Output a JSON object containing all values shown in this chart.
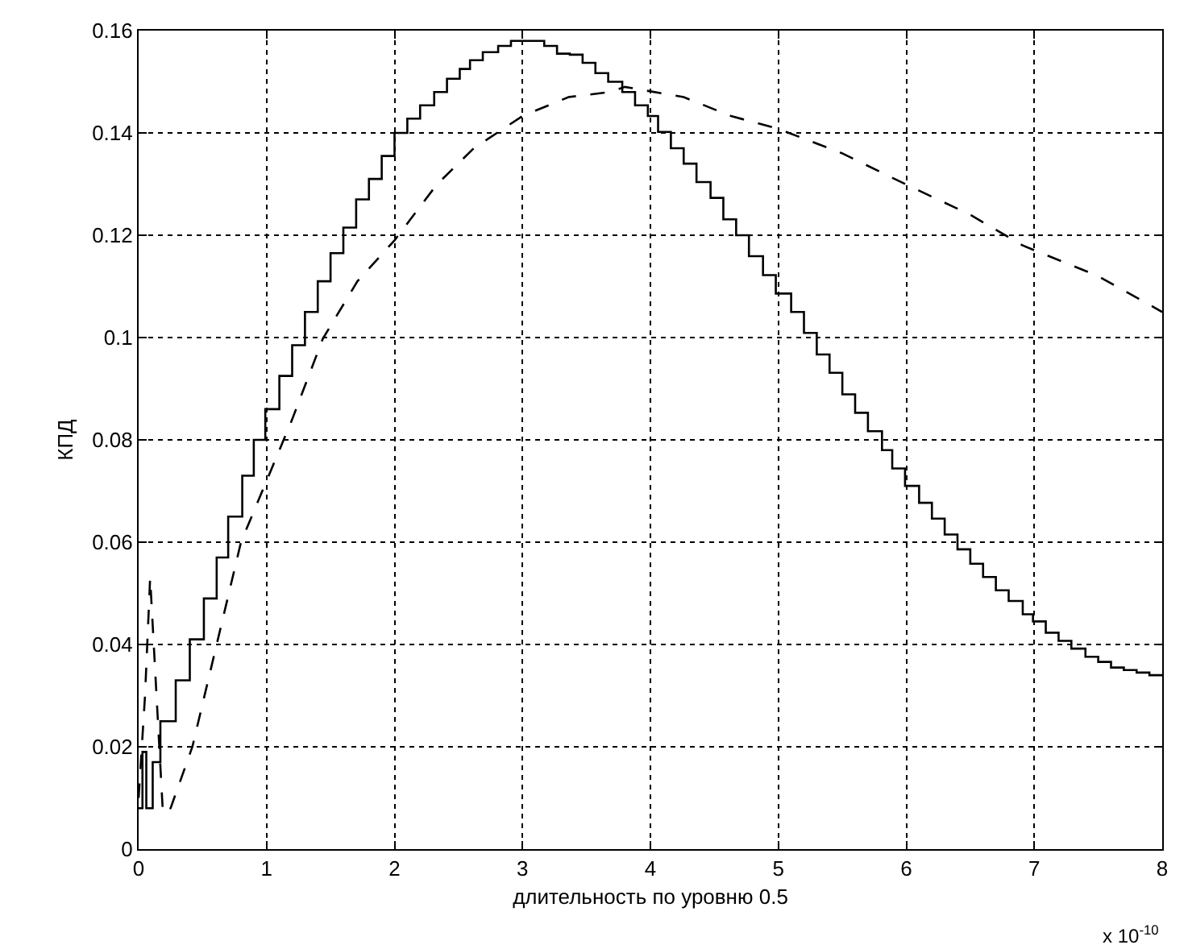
{
  "chart_data": {
    "type": "line",
    "xlabel": "длительность по уровню 0.5",
    "ylabel": "КПД",
    "annotations": [
      "x 10$^{-10}$"
    ],
    "xlim": [
      0,
      8
    ],
    "xticks": [
      0,
      1,
      2,
      3,
      4,
      5,
      6,
      7,
      8
    ],
    "ylim": [
      0,
      0.16
    ],
    "yticks": [
      0,
      0.02,
      0.04,
      0.06,
      0.08,
      0.1,
      0.12,
      0.14,
      0.16
    ],
    "grid": true,
    "series": [
      {
        "type": "step",
        "color": "#000000",
        "line_style": "solid",
        "x": [
          0,
          0.03,
          0.06,
          0.11,
          0.17,
          0.29,
          0.4,
          0.51,
          0.61,
          0.7,
          0.81,
          0.9,
          0.99,
          1.1,
          1.2,
          1.3,
          1.4,
          1.5,
          1.6,
          1.7,
          1.8,
          1.9,
          2.0,
          2.1,
          2.2,
          2.31,
          2.41,
          2.51,
          2.59,
          2.69,
          2.81,
          2.91,
          3.17,
          3.27,
          3.37,
          3.47,
          3.57,
          3.67,
          3.78,
          3.88,
          3.98,
          4.06,
          4.16,
          4.26,
          4.36,
          4.47,
          4.57,
          4.67,
          4.77,
          4.88,
          4.98,
          5.1,
          5.2,
          5.3,
          5.4,
          5.5,
          5.6,
          5.7,
          5.81,
          5.89,
          5.99,
          6.1,
          6.2,
          6.3,
          6.4,
          6.5,
          6.6,
          6.7,
          6.8,
          6.91,
          6.99,
          7.09,
          7.19,
          7.29,
          7.4,
          7.5,
          7.6,
          7.7,
          7.8,
          7.9,
          8.0
        ],
        "values": [
          0.008,
          0.019,
          0.008,
          0.017,
          0.025,
          0.033,
          0.041,
          0.049,
          0.057,
          0.065,
          0.073,
          0.08,
          0.086,
          0.0925,
          0.0985,
          0.105,
          0.111,
          0.1165,
          0.1215,
          0.127,
          0.131,
          0.1355,
          0.14,
          0.1428,
          0.1454,
          0.148,
          0.1506,
          0.1525,
          0.1542,
          0.1558,
          0.157,
          0.158,
          0.157,
          0.1555,
          0.1553,
          0.1537,
          0.1517,
          0.15,
          0.148,
          0.1454,
          0.1433,
          0.1402,
          0.137,
          0.134,
          0.1304,
          0.1273,
          0.1231,
          0.12,
          0.1159,
          0.1122,
          0.1086,
          0.105,
          0.1009,
          0.0967,
          0.0931,
          0.0889,
          0.0853,
          0.0817,
          0.078,
          0.0744,
          0.071,
          0.0677,
          0.0646,
          0.0615,
          0.0586,
          0.0558,
          0.0532,
          0.0506,
          0.0485,
          0.0459,
          0.0445,
          0.0423,
          0.0407,
          0.0392,
          0.0376,
          0.0366,
          0.0355,
          0.035,
          0.0345,
          0.034,
          0.034
        ]
      },
      {
        "color": "#000000",
        "line_style": "dashed",
        "x": [
          0,
          0.05,
          0.09,
          0.14,
          0.19,
          0.25,
          0.42,
          0.61,
          0.8,
          1.0,
          1.2,
          1.44,
          1.71,
          2.0,
          2.33,
          2.62,
          3.0,
          3.36,
          3.68,
          3.8,
          4.26,
          4.63,
          5.0,
          5.5,
          6.0,
          6.5,
          6.91,
          7.5,
          8.0
        ],
        "values": [
          0.01,
          0.03,
          0.053,
          0.03,
          0.007,
          0.008,
          0.02,
          0.04,
          0.06,
          0.072,
          0.084,
          0.0998,
          0.111,
          0.119,
          0.1299,
          0.137,
          0.1433,
          0.147,
          0.148,
          0.149,
          0.147,
          0.1433,
          0.1408,
          0.136,
          0.1299,
          0.124,
          0.118,
          0.112,
          0.105
        ]
      }
    ]
  }
}
